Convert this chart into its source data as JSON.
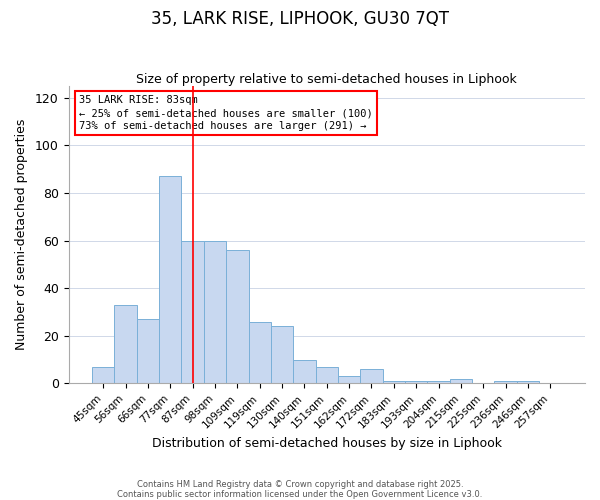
{
  "title": "35, LARK RISE, LIPHOOK, GU30 7QT",
  "subtitle": "Size of property relative to semi-detached houses in Liphook",
  "xlabel": "Distribution of semi-detached houses by size in Liphook",
  "ylabel": "Number of semi-detached properties",
  "bar_color": "#c8d8f0",
  "bar_edge_color": "#7ab0d8",
  "background_color": "#ffffff",
  "categories": [
    "45sqm",
    "56sqm",
    "66sqm",
    "77sqm",
    "87sqm",
    "98sqm",
    "109sqm",
    "119sqm",
    "130sqm",
    "140sqm",
    "151sqm",
    "162sqm",
    "172sqm",
    "183sqm",
    "193sqm",
    "204sqm",
    "215sqm",
    "225sqm",
    "236sqm",
    "246sqm",
    "257sqm"
  ],
  "values": [
    7,
    33,
    27,
    87,
    60,
    60,
    56,
    26,
    24,
    10,
    7,
    3,
    6,
    1,
    1,
    1,
    2,
    0,
    1,
    1,
    0
  ],
  "ylim": [
    0,
    125
  ],
  "yticks": [
    0,
    20,
    40,
    60,
    80,
    100,
    120
  ],
  "annotation_title": "35 LARK RISE: 83sqm",
  "annotation_line1": "← 25% of semi-detached houses are smaller (100)",
  "annotation_line2": "73% of semi-detached houses are larger (291) →",
  "marker_bar_index": 3,
  "footer_line1": "Contains HM Land Registry data © Crown copyright and database right 2025.",
  "footer_line2": "Contains public sector information licensed under the Open Government Licence v3.0.",
  "grid_color": "#d0d8e8",
  "spine_color": "#aaaaaa"
}
